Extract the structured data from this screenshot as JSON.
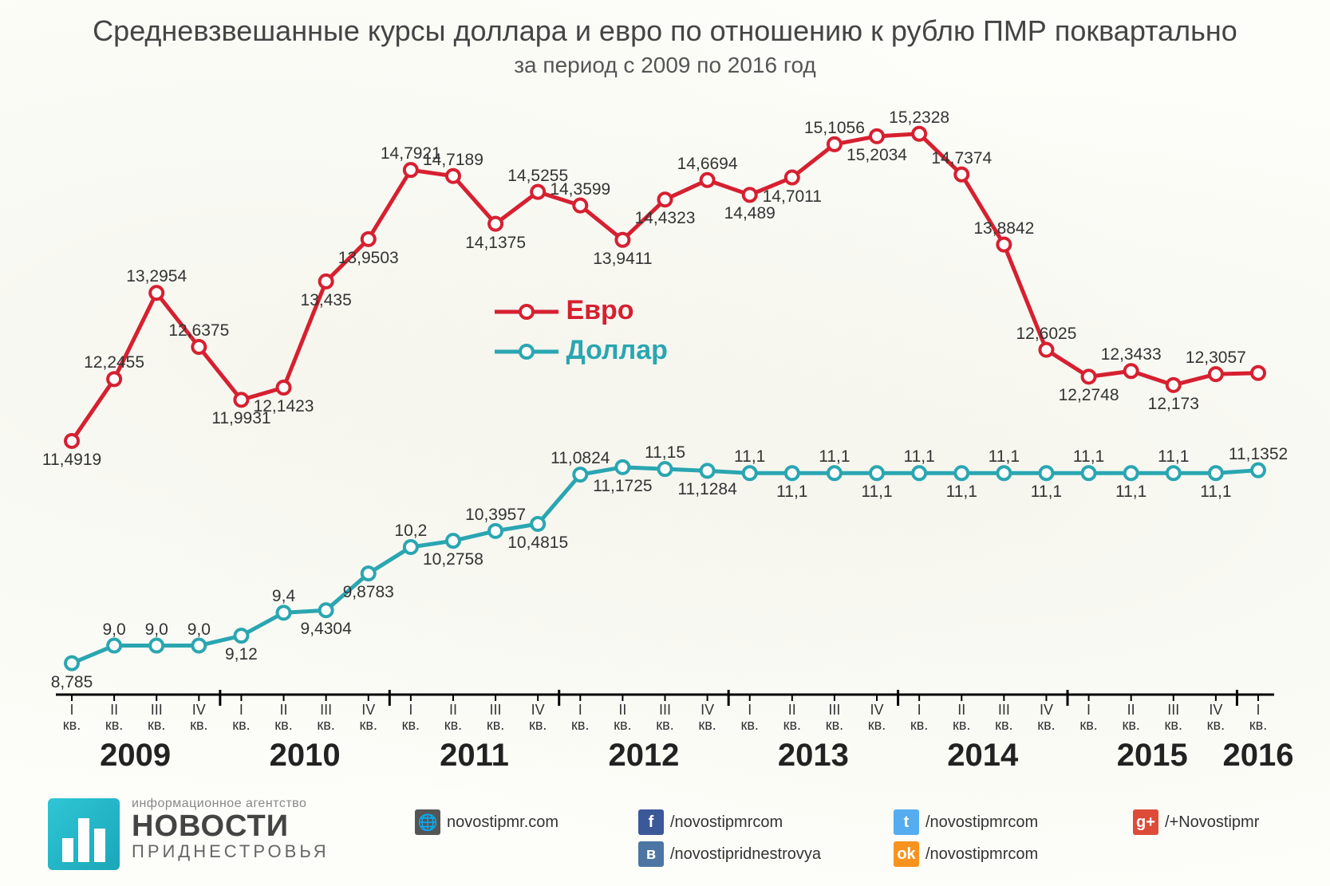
{
  "title": "Средневзвешанные курсы доллара и евро по отношению к рублю ПМР поквартально",
  "subtitle": "за период с 2009 по 2016 год",
  "chart": {
    "type": "line",
    "background_color": "#fdfdf9",
    "axis_color": "#000000",
    "tick_color": "#000000",
    "quarters": [
      "I",
      "II",
      "III",
      "IV",
      "I",
      "II",
      "III",
      "IV",
      "I",
      "II",
      "III",
      "IV",
      "I",
      "II",
      "III",
      "IV",
      "I",
      "II",
      "III",
      "IV",
      "I",
      "II",
      "III",
      "IV",
      "I",
      "II",
      "III",
      "IV",
      "I"
    ],
    "kv_label": "кв.",
    "years": [
      "2009",
      "2010",
      "2011",
      "2012",
      "2013",
      "2014",
      "2015",
      "2016"
    ],
    "year_positions": [
      0,
      4,
      8,
      12,
      16,
      20,
      24,
      28
    ],
    "year_span": [
      4,
      4,
      4,
      4,
      4,
      4,
      4,
      1
    ],
    "ylim": [
      8.5,
      15.6
    ],
    "legend": {
      "euro": "Евро",
      "dollar": "Доллар"
    },
    "label_fontsize": 21,
    "year_fontsize": 40,
    "quarter_fontsize": 18,
    "series": {
      "euro": {
        "color": "#d62030",
        "marker_fill": "#ffffff",
        "marker_stroke": "#d62030",
        "line_width": 5,
        "marker_radius": 8,
        "labels": [
          "11,4919",
          "12,2455",
          "13,2954",
          "12,6375",
          "11,9931",
          "12,1423",
          "13,435",
          "13,9503",
          "14,7921",
          "14,7189",
          "14,1375",
          "14,5255",
          "14,3599",
          "13,9411",
          "14,4323",
          "14,6694",
          "14,489",
          "14,7011",
          "15,1056",
          "15,2034",
          "15,2328",
          "14,7374",
          "13,8842",
          "12,6025",
          "12,2748",
          "12,3433",
          "12,173",
          "12,3057",
          ""
        ],
        "label_pos": [
          "below",
          "above",
          "above",
          "above",
          "below",
          "below",
          "below",
          "below",
          "above",
          "above",
          "below",
          "above",
          "above",
          "below",
          "below",
          "above",
          "below",
          "below",
          "above",
          "below",
          "above",
          "above",
          "above",
          "above",
          "below",
          "above",
          "below",
          "above",
          ""
        ],
        "values": [
          11.4919,
          12.2455,
          13.2954,
          12.6375,
          11.9931,
          12.1423,
          13.435,
          13.9503,
          14.7921,
          14.7189,
          14.1375,
          14.5255,
          14.3599,
          13.9411,
          14.4323,
          14.6694,
          14.489,
          14.7011,
          15.1056,
          15.2034,
          15.2328,
          14.7374,
          13.8842,
          12.6025,
          12.2748,
          12.3433,
          12.173,
          12.3057,
          12.32
        ]
      },
      "dollar": {
        "color": "#2aa6b1",
        "marker_fill": "#ffffff",
        "marker_stroke": "#2aa6b1",
        "line_width": 5,
        "marker_radius": 8,
        "labels": [
          "8,785",
          "9,0",
          "9,0",
          "9,0",
          "9,12",
          "9,4",
          "9,4304",
          "9,8783",
          "10,2",
          "10,2758",
          "10,3957",
          "10,4815",
          "11,0824",
          "11,1725",
          "11,15",
          "11,1284",
          "11,1",
          "11,1",
          "11,1",
          "11,1",
          "11,1",
          "11,1",
          "11,1",
          "11,1",
          "11,1",
          "11,1",
          "11,1",
          "11,1",
          "11,1352"
        ],
        "label_pos": [
          "below",
          "above",
          "above",
          "above",
          "below",
          "above",
          "below",
          "below",
          "above",
          "below",
          "above",
          "below",
          "above",
          "below",
          "above",
          "below",
          "above",
          "below",
          "above",
          "below",
          "above",
          "below",
          "above",
          "below",
          "above",
          "below",
          "above",
          "below",
          "above"
        ],
        "values": [
          8.785,
          9.0,
          9.0,
          9.0,
          9.12,
          9.4,
          9.4304,
          9.8783,
          10.2,
          10.2758,
          10.3957,
          10.4815,
          11.0824,
          11.1725,
          11.15,
          11.1284,
          11.1,
          11.1,
          11.1,
          11.1,
          11.1,
          11.1,
          11.1,
          11.1,
          11.1,
          11.1,
          11.1,
          11.1,
          11.1352
        ]
      }
    }
  },
  "footer": {
    "agency_tag": "информационное агентство",
    "brand1": "НОВОСТИ",
    "brand2": "ПРИДНЕСТРОВЬЯ",
    "socials": [
      {
        "icon": "globe",
        "glyph": "🌐",
        "bg": "#555555",
        "text": "novostipmr.com"
      },
      {
        "icon": "facebook",
        "glyph": "f",
        "bg": "#3b5998",
        "text": "/novostipmrcom"
      },
      {
        "icon": "twitter",
        "glyph": "t",
        "bg": "#55acee",
        "text": "/novostipmrcom"
      },
      {
        "icon": "gplus",
        "glyph": "g+",
        "bg": "#dd4b39",
        "text": "/+Novostipmr"
      },
      {
        "icon": "vk",
        "glyph": "в",
        "bg": "#4c75a3",
        "text": "/novostipridnestrovya"
      },
      {
        "icon": "ok",
        "glyph": "ok",
        "bg": "#f7931e",
        "text": "/novostipmrcom"
      }
    ]
  }
}
